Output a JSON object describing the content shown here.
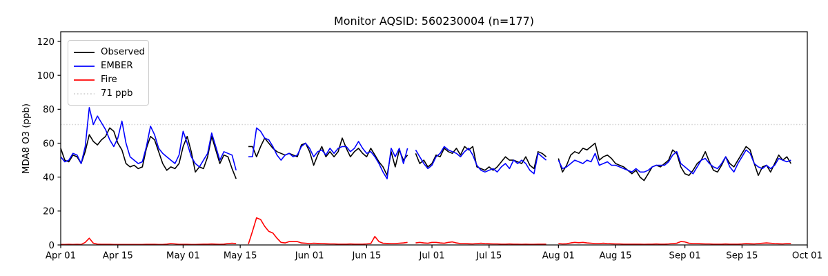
{
  "title": "Monitor AQSID: 560230004 (n=177)",
  "ylabel": "MDA8 O3 (ppb)",
  "colors": {
    "observed": "#000000",
    "ember": "#0000ff",
    "fire": "#ff0000",
    "threshold": "#d3d3d3",
    "frame": "#000000",
    "background": "#ffffff"
  },
  "legend": {
    "position": "upper-left",
    "entries": [
      {
        "id": "observed",
        "label": "Observed",
        "color": "#000000",
        "dash": "solid"
      },
      {
        "id": "ember",
        "label": "EMBER",
        "color": "#0000ff",
        "dash": "solid"
      },
      {
        "id": "fire",
        "label": "Fire",
        "color": "#ff0000",
        "dash": "solid"
      },
      {
        "id": "threshold",
        "label": "71 ppb",
        "color": "#d3d3d3",
        "dash": "dotted"
      }
    ]
  },
  "chart_data": {
    "type": "line",
    "title": "Monitor AQSID: 560230004 (n=177)",
    "xlabel": "",
    "ylabel": "MDA8 O3 (ppb)",
    "ylim": [
      0,
      125.7
    ],
    "xlim_days": [
      0,
      183
    ],
    "x_start_date": "Apr 01",
    "x_end_date": "Oct 01",
    "grid": false,
    "yticks": [
      0,
      20,
      40,
      60,
      80,
      100,
      120
    ],
    "xticks": [
      {
        "day": 0,
        "label": "Apr 01"
      },
      {
        "day": 14,
        "label": "Apr 15"
      },
      {
        "day": 30,
        "label": "May 01"
      },
      {
        "day": 44,
        "label": "May 15"
      },
      {
        "day": 61,
        "label": "Jun 01"
      },
      {
        "day": 75,
        "label": "Jun 15"
      },
      {
        "day": 91,
        "label": "Jul 01"
      },
      {
        "day": 105,
        "label": "Jul 15"
      },
      {
        "day": 122,
        "label": "Aug 01"
      },
      {
        "day": 136,
        "label": "Aug 15"
      },
      {
        "day": 153,
        "label": "Sep 01"
      },
      {
        "day": 167,
        "label": "Sep 15"
      },
      {
        "day": 183,
        "label": "Oct 01"
      }
    ],
    "threshold": {
      "value": 71,
      "label": "71 ppb",
      "color": "#d3d3d3",
      "style": "dotted"
    },
    "series": [
      {
        "name": "Observed",
        "color": "#000000",
        "segments": [
          {
            "start_day": 0,
            "values": [
              57,
              50,
              49,
              53,
              52,
              48,
              55,
              65,
              61,
              59,
              62,
              64,
              69,
              67,
              60,
              56,
              48,
              46,
              47,
              45,
              46,
              57,
              64,
              62,
              55,
              48,
              44,
              46,
              45,
              48,
              58,
              64,
              55,
              43,
              46,
              45,
              52,
              64,
              56,
              48,
              53,
              52,
              45,
              39
            ]
          },
          {
            "start_day": 46,
            "values": [
              58,
              58,
              52,
              58,
              63,
              60,
              57,
              55,
              54,
              53,
              54,
              53,
              52,
              59,
              60,
              55,
              47,
              53,
              58,
              52,
              55,
              52,
              55,
              63,
              57,
              52,
              55,
              57,
              54,
              52,
              57,
              53,
              49,
              46,
              41,
              55,
              46,
              56,
              50,
              53
            ]
          },
          {
            "start_day": 87,
            "values": [
              54,
              48,
              50,
              46,
              48,
              53,
              52,
              57,
              55,
              54,
              57,
              53,
              58,
              56,
              58,
              46,
              45,
              44,
              46,
              44,
              46,
              49,
              52,
              50,
              50,
              49,
              48,
              52,
              47,
              45,
              55,
              54,
              52
            ]
          },
          {
            "start_day": 122,
            "values": [
              51,
              43,
              47,
              53,
              55,
              54,
              57,
              56,
              58,
              60,
              50,
              52,
              53,
              51,
              48,
              47,
              46,
              44,
              42,
              44,
              40,
              38,
              42,
              46,
              47,
              46,
              48,
              50,
              56,
              54,
              46,
              42,
              41,
              44,
              48,
              50,
              55,
              49,
              44,
              43,
              47,
              52,
              48,
              46,
              50,
              54,
              58,
              56,
              48,
              41,
              46,
              47,
              43,
              48,
              53,
              50,
              52,
              48
            ]
          }
        ]
      },
      {
        "name": "EMBER",
        "color": "#0000ff",
        "segments": [
          {
            "start_day": 0,
            "values": [
              52,
              49,
              50,
              54,
              53,
              48,
              58,
              81,
              71,
              76,
              72,
              68,
              62,
              58,
              63,
              73,
              60,
              52,
              50,
              48,
              49,
              58,
              70,
              65,
              57,
              54,
              52,
              50,
              48,
              53,
              67,
              60,
              52,
              48,
              46,
              50,
              54,
              66,
              58,
              50,
              55,
              54,
              53,
              44
            ]
          },
          {
            "start_day": 46,
            "values": [
              52,
              52,
              69,
              67,
              63,
              62,
              58,
              53,
              50,
              53,
              54,
              52,
              53,
              58,
              60,
              57,
              52,
              55,
              56,
              53,
              57,
              54,
              57,
              58,
              58,
              55,
              57,
              61,
              57,
              54,
              55,
              52,
              48,
              43,
              39,
              57,
              52,
              57,
              48,
              57
            ]
          },
          {
            "start_day": 87,
            "values": [
              56,
              52,
              48,
              45,
              47,
              52,
              54,
              58,
              56,
              55,
              54,
              52,
              55,
              57,
              53,
              47,
              44,
              43,
              44,
              45,
              43,
              46,
              48,
              45,
              50,
              48,
              50,
              48,
              44,
              42,
              54,
              52,
              50
            ]
          },
          {
            "start_day": 122,
            "values": [
              50,
              45,
              46,
              48,
              50,
              49,
              48,
              50,
              49,
              54,
              47,
              48,
              49,
              47,
              47,
              46,
              45,
              44,
              43,
              45,
              43,
              43,
              44,
              46,
              47,
              47,
              47,
              49,
              53,
              55,
              48,
              46,
              44,
              42,
              46,
              50,
              51,
              48,
              46,
              45,
              48,
              52,
              46,
              43,
              48,
              52,
              56,
              54,
              48,
              46,
              45,
              47,
              45,
              47,
              51,
              50,
              49,
              50
            ]
          }
        ]
      },
      {
        "name": "Fire",
        "color": "#ff0000",
        "segments": [
          {
            "start_day": 0,
            "values": [
              0.3,
              0.3,
              0.4,
              0.3,
              0.4,
              0.3,
              1.5,
              4,
              1,
              0.5,
              0.4,
              0.4,
              0.4,
              0.3,
              0.3,
              0.3,
              0.3,
              0.3,
              0.3,
              0.3,
              0.3,
              0.4,
              0.4,
              0.4,
              0.3,
              0.3,
              0.5,
              0.8,
              0.6,
              0.4,
              0.4,
              0.4,
              0.3,
              0.3,
              0.4,
              0.5,
              0.5,
              0.6,
              0.5,
              0.4,
              0.5,
              0.8,
              1.0,
              0.8
            ]
          },
          {
            "start_day": 46,
            "values": [
              0.5,
              8,
              16,
              15,
              11,
              8,
              7,
              4,
              1.5,
              1.2,
              2,
              2,
              2,
              1.2,
              1,
              0.8,
              1,
              0.9,
              0.8,
              0.7,
              0.6,
              0.6,
              0.5,
              0.5,
              0.5,
              0.6,
              0.5,
              0.5,
              0.5,
              0.6,
              0.8,
              5,
              2,
              1,
              0.9,
              0.8,
              0.8,
              1,
              1.2,
              1.5
            ]
          },
          {
            "start_day": 87,
            "values": [
              1.2,
              1.5,
              1.2,
              1.0,
              1.5,
              1.5,
              1.2,
              1.0,
              1.5,
              1.8,
              1.2,
              0.8,
              0.8,
              0.7,
              0.6,
              0.8,
              1.0,
              0.8,
              0.7,
              0.6,
              0.6,
              0.5,
              0.5,
              0.6,
              0.5,
              0.5,
              0.4,
              0.5,
              0.4,
              0.4,
              0.5,
              0.5,
              0.5
            ]
          },
          {
            "start_day": 122,
            "values": [
              0.8,
              0.6,
              0.7,
              1.2,
              1.5,
              1.3,
              1.5,
              1.2,
              1.0,
              0.8,
              0.8,
              1.0,
              0.8,
              0.7,
              0.6,
              0.6,
              0.5,
              0.5,
              0.5,
              0.5,
              0.5,
              0.4,
              0.5,
              0.5,
              0.6,
              0.5,
              0.5,
              0.6,
              0.8,
              1.0,
              2.0,
              1.8,
              1.0,
              0.8,
              0.8,
              0.7,
              0.6,
              0.6,
              0.5,
              0.5,
              0.5,
              0.6,
              0.5,
              0.5,
              0.5,
              0.6,
              0.8,
              0.7,
              0.6,
              0.8,
              1.0,
              1.2,
              1.0,
              0.8,
              0.7,
              0.6,
              0.8,
              0.8
            ]
          }
        ]
      }
    ]
  }
}
